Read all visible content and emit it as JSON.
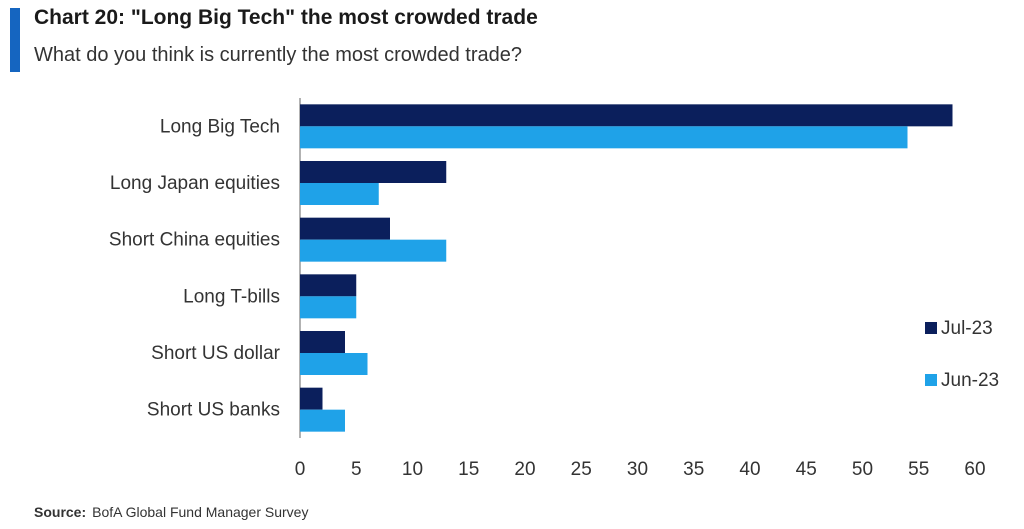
{
  "header": {
    "title": "Chart 20: \"Long Big Tech\" the most crowded trade",
    "subtitle": "What do you think is currently the most crowded trade?"
  },
  "footer": {
    "source_label": "Source:",
    "source_text": "BofA Global Fund Manager Survey"
  },
  "colors": {
    "accent": "#1565c0",
    "series_jul": "#0b1f5c",
    "series_jun": "#1fa2e8"
  },
  "chart_data": {
    "type": "bar",
    "orientation": "horizontal",
    "title": "Chart 20: \"Long Big Tech\" the most crowded trade",
    "subtitle": "What do you think is currently the most crowded trade?",
    "categories": [
      "Long Big Tech",
      "Long Japan equities",
      "Short China equities",
      "Long T-bills",
      "Short US dollar",
      "Short US banks"
    ],
    "series": [
      {
        "name": "Jul-23",
        "color": "#0b1f5c",
        "values": [
          58,
          13,
          8,
          5,
          4,
          2
        ]
      },
      {
        "name": "Jun-23",
        "color": "#1fa2e8",
        "values": [
          54,
          7,
          13,
          5,
          6,
          4
        ]
      }
    ],
    "xlim": [
      0,
      60
    ],
    "xticks": [
      0,
      5,
      10,
      15,
      20,
      25,
      30,
      35,
      40,
      45,
      50,
      55,
      60
    ],
    "grid": false,
    "legend_position": "right"
  }
}
